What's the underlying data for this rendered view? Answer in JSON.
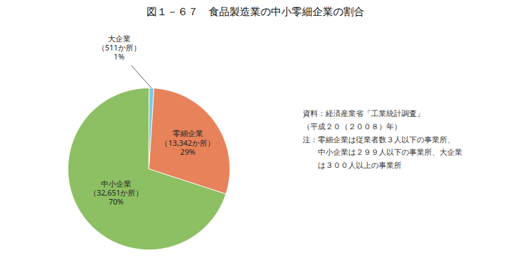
{
  "chart_data": {
    "type": "pie",
    "title": "図１－６７　食品製造業の中小零細企業の割合",
    "categories": [
      "大企業",
      "零細企業",
      "中小企業"
    ],
    "values": [
      1,
      29,
      70
    ],
    "colors": [
      "#7ec8e3",
      "#e8825a",
      "#8dc063"
    ],
    "data_labels": true,
    "value_labels": [
      "1%",
      "29%",
      "70%"
    ],
    "count_labels": [
      "（511か所）",
      "（13,342か所）",
      "（32,651か所）"
    ],
    "annotations": [
      "資料：経済産業省「工業統計調査」",
      "（平成２０（２００８）年）",
      "注：零細企業は従業者数３人以下の事業所、",
      "　　中小企業は２９９人以下の事業所、大企業",
      "　　は３００人以上の事業所"
    ]
  }
}
